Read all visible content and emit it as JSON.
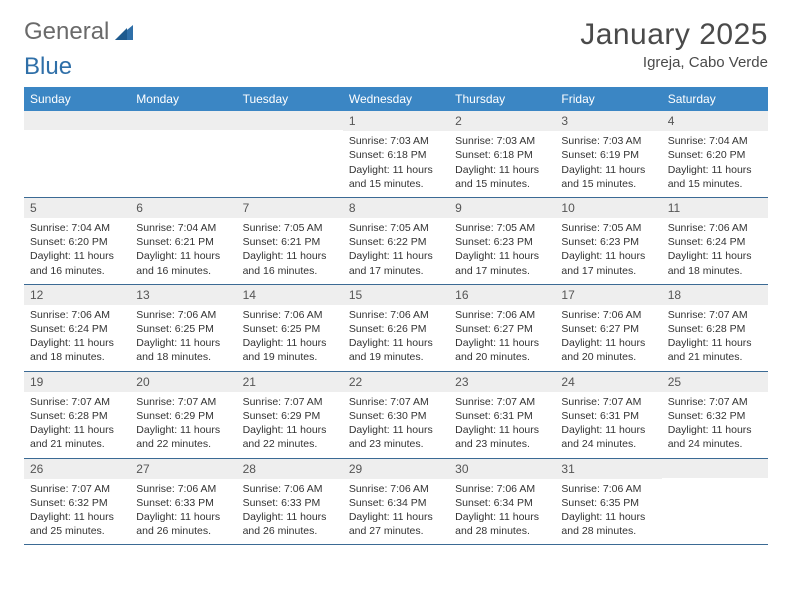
{
  "logo": {
    "text1": "General",
    "text2": "Blue"
  },
  "title": "January 2025",
  "location": "Igreja, Cabo Verde",
  "colors": {
    "header_bg": "#3b86c4",
    "header_text": "#ffffff",
    "daynum_bg": "#eeeeee",
    "border": "#3b6a94",
    "text": "#333333",
    "logo_gray": "#6a6a6a",
    "logo_blue": "#2f6fa8"
  },
  "day_names": [
    "Sunday",
    "Monday",
    "Tuesday",
    "Wednesday",
    "Thursday",
    "Friday",
    "Saturday"
  ],
  "weeks": [
    [
      {
        "n": "",
        "sr": "",
        "ss": "",
        "dl": ""
      },
      {
        "n": "",
        "sr": "",
        "ss": "",
        "dl": ""
      },
      {
        "n": "",
        "sr": "",
        "ss": "",
        "dl": ""
      },
      {
        "n": "1",
        "sr": "Sunrise: 7:03 AM",
        "ss": "Sunset: 6:18 PM",
        "dl": "Daylight: 11 hours and 15 minutes."
      },
      {
        "n": "2",
        "sr": "Sunrise: 7:03 AM",
        "ss": "Sunset: 6:18 PM",
        "dl": "Daylight: 11 hours and 15 minutes."
      },
      {
        "n": "3",
        "sr": "Sunrise: 7:03 AM",
        "ss": "Sunset: 6:19 PM",
        "dl": "Daylight: 11 hours and 15 minutes."
      },
      {
        "n": "4",
        "sr": "Sunrise: 7:04 AM",
        "ss": "Sunset: 6:20 PM",
        "dl": "Daylight: 11 hours and 15 minutes."
      }
    ],
    [
      {
        "n": "5",
        "sr": "Sunrise: 7:04 AM",
        "ss": "Sunset: 6:20 PM",
        "dl": "Daylight: 11 hours and 16 minutes."
      },
      {
        "n": "6",
        "sr": "Sunrise: 7:04 AM",
        "ss": "Sunset: 6:21 PM",
        "dl": "Daylight: 11 hours and 16 minutes."
      },
      {
        "n": "7",
        "sr": "Sunrise: 7:05 AM",
        "ss": "Sunset: 6:21 PM",
        "dl": "Daylight: 11 hours and 16 minutes."
      },
      {
        "n": "8",
        "sr": "Sunrise: 7:05 AM",
        "ss": "Sunset: 6:22 PM",
        "dl": "Daylight: 11 hours and 17 minutes."
      },
      {
        "n": "9",
        "sr": "Sunrise: 7:05 AM",
        "ss": "Sunset: 6:23 PM",
        "dl": "Daylight: 11 hours and 17 minutes."
      },
      {
        "n": "10",
        "sr": "Sunrise: 7:05 AM",
        "ss": "Sunset: 6:23 PM",
        "dl": "Daylight: 11 hours and 17 minutes."
      },
      {
        "n": "11",
        "sr": "Sunrise: 7:06 AM",
        "ss": "Sunset: 6:24 PM",
        "dl": "Daylight: 11 hours and 18 minutes."
      }
    ],
    [
      {
        "n": "12",
        "sr": "Sunrise: 7:06 AM",
        "ss": "Sunset: 6:24 PM",
        "dl": "Daylight: 11 hours and 18 minutes."
      },
      {
        "n": "13",
        "sr": "Sunrise: 7:06 AM",
        "ss": "Sunset: 6:25 PM",
        "dl": "Daylight: 11 hours and 18 minutes."
      },
      {
        "n": "14",
        "sr": "Sunrise: 7:06 AM",
        "ss": "Sunset: 6:25 PM",
        "dl": "Daylight: 11 hours and 19 minutes."
      },
      {
        "n": "15",
        "sr": "Sunrise: 7:06 AM",
        "ss": "Sunset: 6:26 PM",
        "dl": "Daylight: 11 hours and 19 minutes."
      },
      {
        "n": "16",
        "sr": "Sunrise: 7:06 AM",
        "ss": "Sunset: 6:27 PM",
        "dl": "Daylight: 11 hours and 20 minutes."
      },
      {
        "n": "17",
        "sr": "Sunrise: 7:06 AM",
        "ss": "Sunset: 6:27 PM",
        "dl": "Daylight: 11 hours and 20 minutes."
      },
      {
        "n": "18",
        "sr": "Sunrise: 7:07 AM",
        "ss": "Sunset: 6:28 PM",
        "dl": "Daylight: 11 hours and 21 minutes."
      }
    ],
    [
      {
        "n": "19",
        "sr": "Sunrise: 7:07 AM",
        "ss": "Sunset: 6:28 PM",
        "dl": "Daylight: 11 hours and 21 minutes."
      },
      {
        "n": "20",
        "sr": "Sunrise: 7:07 AM",
        "ss": "Sunset: 6:29 PM",
        "dl": "Daylight: 11 hours and 22 minutes."
      },
      {
        "n": "21",
        "sr": "Sunrise: 7:07 AM",
        "ss": "Sunset: 6:29 PM",
        "dl": "Daylight: 11 hours and 22 minutes."
      },
      {
        "n": "22",
        "sr": "Sunrise: 7:07 AM",
        "ss": "Sunset: 6:30 PM",
        "dl": "Daylight: 11 hours and 23 minutes."
      },
      {
        "n": "23",
        "sr": "Sunrise: 7:07 AM",
        "ss": "Sunset: 6:31 PM",
        "dl": "Daylight: 11 hours and 23 minutes."
      },
      {
        "n": "24",
        "sr": "Sunrise: 7:07 AM",
        "ss": "Sunset: 6:31 PM",
        "dl": "Daylight: 11 hours and 24 minutes."
      },
      {
        "n": "25",
        "sr": "Sunrise: 7:07 AM",
        "ss": "Sunset: 6:32 PM",
        "dl": "Daylight: 11 hours and 24 minutes."
      }
    ],
    [
      {
        "n": "26",
        "sr": "Sunrise: 7:07 AM",
        "ss": "Sunset: 6:32 PM",
        "dl": "Daylight: 11 hours and 25 minutes."
      },
      {
        "n": "27",
        "sr": "Sunrise: 7:06 AM",
        "ss": "Sunset: 6:33 PM",
        "dl": "Daylight: 11 hours and 26 minutes."
      },
      {
        "n": "28",
        "sr": "Sunrise: 7:06 AM",
        "ss": "Sunset: 6:33 PM",
        "dl": "Daylight: 11 hours and 26 minutes."
      },
      {
        "n": "29",
        "sr": "Sunrise: 7:06 AM",
        "ss": "Sunset: 6:34 PM",
        "dl": "Daylight: 11 hours and 27 minutes."
      },
      {
        "n": "30",
        "sr": "Sunrise: 7:06 AM",
        "ss": "Sunset: 6:34 PM",
        "dl": "Daylight: 11 hours and 28 minutes."
      },
      {
        "n": "31",
        "sr": "Sunrise: 7:06 AM",
        "ss": "Sunset: 6:35 PM",
        "dl": "Daylight: 11 hours and 28 minutes."
      },
      {
        "n": "",
        "sr": "",
        "ss": "",
        "dl": ""
      }
    ]
  ]
}
